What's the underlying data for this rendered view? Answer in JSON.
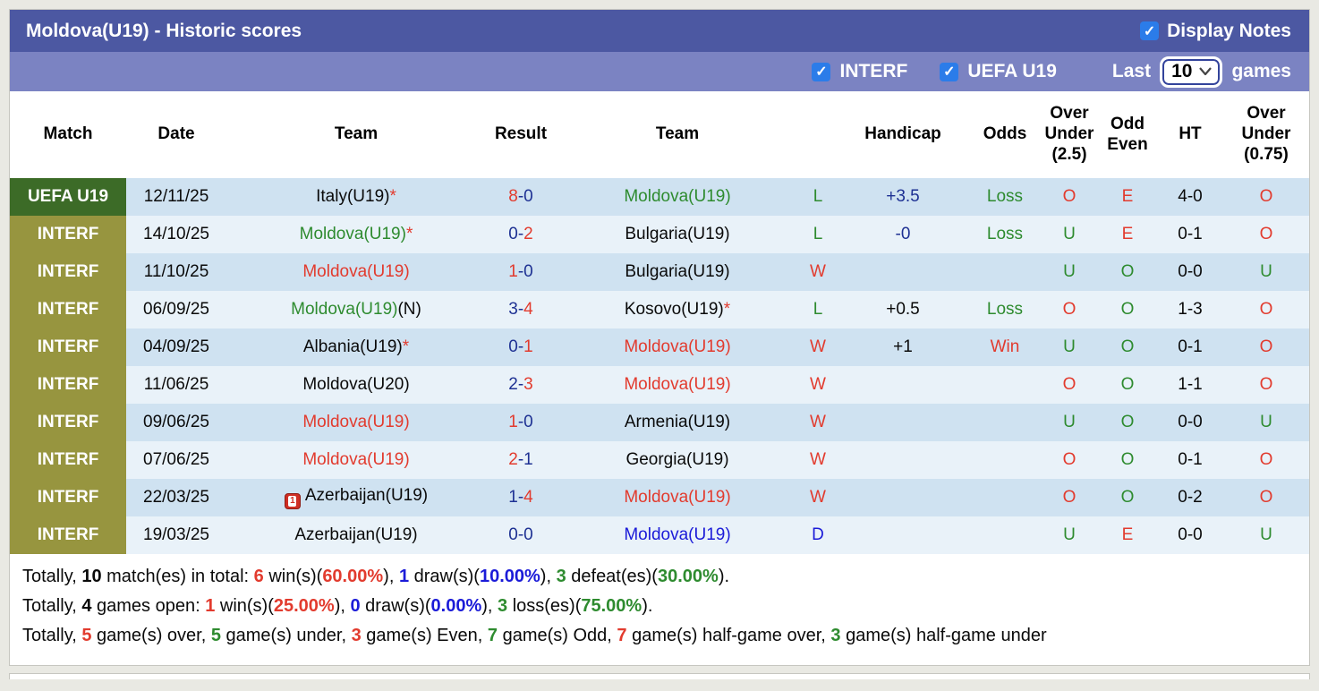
{
  "colors": {
    "titlebar_bg": "#4c58a2",
    "filterbar_bg": "#7b83c2",
    "checkbox_blue": "#2b7ce9",
    "uefa_badge": "#3c6b27",
    "interf_badge": "#97953f",
    "row_dark": "#cfe2f1",
    "row_light": "#e9f2f9",
    "red": "#e23b2e",
    "green": "#2e8b2f",
    "navy": "#1e3193",
    "blue": "#1b1bd8"
  },
  "titlebar": {
    "title": "Moldova(U19) - Historic scores",
    "display_notes": "Display Notes",
    "display_notes_checked": true
  },
  "filterbar": {
    "interf": "INTERF",
    "interf_checked": true,
    "uefa": "UEFA U19",
    "uefa_checked": true,
    "last": "Last",
    "select_value": "10",
    "games": "games"
  },
  "table": {
    "headers": [
      "Match",
      "Date",
      "Team",
      "Result",
      "Team",
      "",
      "Handicap",
      "Odds",
      "Over Under (2.5)",
      "Odd Even",
      "HT",
      "Over Under (0.75)"
    ],
    "rows": [
      {
        "badge": {
          "t": "UEFA U19",
          "type": "uefa"
        },
        "date": "12/11/25",
        "team1": [
          {
            "t": "Italy(U19)",
            "c": "black"
          },
          {
            "t": "*",
            "c": "red"
          }
        ],
        "result": [
          {
            "t": "8",
            "c": "red"
          },
          {
            "t": "-",
            "c": "navy"
          },
          {
            "t": "0",
            "c": "navy"
          }
        ],
        "team2": [
          {
            "t": "Moldova(U19)",
            "c": "green"
          }
        ],
        "letter": {
          "t": "L",
          "c": "green"
        },
        "handicap": {
          "t": "+3.5",
          "c": "navy"
        },
        "odds": {
          "t": "Loss",
          "c": "green"
        },
        "ou25": {
          "t": "O",
          "c": "red"
        },
        "odd_even": {
          "t": "E",
          "c": "red"
        },
        "ht": "4-0",
        "ou075": {
          "t": "O",
          "c": "red"
        }
      },
      {
        "badge": {
          "t": "INTERF",
          "type": "interf"
        },
        "date": "14/10/25",
        "team1": [
          {
            "t": "Moldova(U19)",
            "c": "green"
          },
          {
            "t": "*",
            "c": "red"
          }
        ],
        "result": [
          {
            "t": "0",
            "c": "navy"
          },
          {
            "t": "-",
            "c": "navy"
          },
          {
            "t": "2",
            "c": "red"
          }
        ],
        "team2": [
          {
            "t": "Bulgaria(U19)",
            "c": "black"
          }
        ],
        "letter": {
          "t": "L",
          "c": "green"
        },
        "handicap": {
          "t": "-0",
          "c": "navy"
        },
        "odds": {
          "t": "Loss",
          "c": "green"
        },
        "ou25": {
          "t": "U",
          "c": "green"
        },
        "odd_even": {
          "t": "E",
          "c": "red"
        },
        "ht": "0-1",
        "ou075": {
          "t": "O",
          "c": "red"
        }
      },
      {
        "badge": {
          "t": "INTERF",
          "type": "interf"
        },
        "date": "11/10/25",
        "team1": [
          {
            "t": "Moldova(U19)",
            "c": "red"
          }
        ],
        "result": [
          {
            "t": "1",
            "c": "red"
          },
          {
            "t": "-",
            "c": "navy"
          },
          {
            "t": "0",
            "c": "navy"
          }
        ],
        "team2": [
          {
            "t": "Bulgaria(U19)",
            "c": "black"
          }
        ],
        "letter": {
          "t": "W",
          "c": "red"
        },
        "handicap": null,
        "odds": null,
        "ou25": {
          "t": "U",
          "c": "green"
        },
        "odd_even": {
          "t": "O",
          "c": "green"
        },
        "ht": "0-0",
        "ou075": {
          "t": "U",
          "c": "green"
        }
      },
      {
        "badge": {
          "t": "INTERF",
          "type": "interf"
        },
        "date": "06/09/25",
        "team1": [
          {
            "t": "Moldova(U19)",
            "c": "green"
          },
          {
            "t": "(N)",
            "c": "black"
          }
        ],
        "result": [
          {
            "t": "3",
            "c": "navy"
          },
          {
            "t": "-",
            "c": "navy"
          },
          {
            "t": "4",
            "c": "red"
          }
        ],
        "team2": [
          {
            "t": "Kosovo(U19)",
            "c": "black"
          },
          {
            "t": "*",
            "c": "red"
          }
        ],
        "letter": {
          "t": "L",
          "c": "green"
        },
        "handicap": {
          "t": "+0.5",
          "c": "black"
        },
        "odds": {
          "t": "Loss",
          "c": "green"
        },
        "ou25": {
          "t": "O",
          "c": "red"
        },
        "odd_even": {
          "t": "O",
          "c": "green"
        },
        "ht": "1-3",
        "ou075": {
          "t": "O",
          "c": "red"
        }
      },
      {
        "badge": {
          "t": "INTERF",
          "type": "interf"
        },
        "date": "04/09/25",
        "team1": [
          {
            "t": "Albania(U19)",
            "c": "black"
          },
          {
            "t": "*",
            "c": "red"
          }
        ],
        "result": [
          {
            "t": "0",
            "c": "navy"
          },
          {
            "t": "-",
            "c": "navy"
          },
          {
            "t": "1",
            "c": "red"
          }
        ],
        "team2": [
          {
            "t": "Moldova(U19)",
            "c": "red"
          }
        ],
        "letter": {
          "t": "W",
          "c": "red"
        },
        "handicap": {
          "t": "+1",
          "c": "black"
        },
        "odds": {
          "t": "Win",
          "c": "red"
        },
        "ou25": {
          "t": "U",
          "c": "green"
        },
        "odd_even": {
          "t": "O",
          "c": "green"
        },
        "ht": "0-1",
        "ou075": {
          "t": "O",
          "c": "red"
        }
      },
      {
        "badge": {
          "t": "INTERF",
          "type": "interf"
        },
        "date": "11/06/25",
        "team1": [
          {
            "t": "Moldova(U20)",
            "c": "black"
          }
        ],
        "result": [
          {
            "t": "2",
            "c": "navy"
          },
          {
            "t": "-",
            "c": "navy"
          },
          {
            "t": "3",
            "c": "red"
          }
        ],
        "team2": [
          {
            "t": "Moldova(U19)",
            "c": "red"
          }
        ],
        "letter": {
          "t": "W",
          "c": "red"
        },
        "handicap": null,
        "odds": null,
        "ou25": {
          "t": "O",
          "c": "red"
        },
        "odd_even": {
          "t": "O",
          "c": "green"
        },
        "ht": "1-1",
        "ou075": {
          "t": "O",
          "c": "red"
        }
      },
      {
        "badge": {
          "t": "INTERF",
          "type": "interf"
        },
        "date": "09/06/25",
        "team1": [
          {
            "t": "Moldova(U19)",
            "c": "red"
          }
        ],
        "result": [
          {
            "t": "1",
            "c": "red"
          },
          {
            "t": "-",
            "c": "navy"
          },
          {
            "t": "0",
            "c": "navy"
          }
        ],
        "team2": [
          {
            "t": "Armenia(U19)",
            "c": "black"
          }
        ],
        "letter": {
          "t": "W",
          "c": "red"
        },
        "handicap": null,
        "odds": null,
        "ou25": {
          "t": "U",
          "c": "green"
        },
        "odd_even": {
          "t": "O",
          "c": "green"
        },
        "ht": "0-0",
        "ou075": {
          "t": "U",
          "c": "green"
        }
      },
      {
        "badge": {
          "t": "INTERF",
          "type": "interf"
        },
        "date": "07/06/25",
        "team1": [
          {
            "t": "Moldova(U19)",
            "c": "red"
          }
        ],
        "result": [
          {
            "t": "2",
            "c": "red"
          },
          {
            "t": "-",
            "c": "navy"
          },
          {
            "t": "1",
            "c": "navy"
          }
        ],
        "team2": [
          {
            "t": "Georgia(U19)",
            "c": "black"
          }
        ],
        "letter": {
          "t": "W",
          "c": "red"
        },
        "handicap": null,
        "odds": null,
        "ou25": {
          "t": "O",
          "c": "red"
        },
        "odd_even": {
          "t": "O",
          "c": "green"
        },
        "ht": "0-1",
        "ou075": {
          "t": "O",
          "c": "red"
        }
      },
      {
        "badge": {
          "t": "INTERF",
          "type": "interf"
        },
        "date": "22/03/25",
        "team1": [
          {
            "icon": "red-card"
          },
          {
            "t": "Azerbaijan(U19)",
            "c": "black"
          }
        ],
        "result": [
          {
            "t": "1",
            "c": "navy"
          },
          {
            "t": "-",
            "c": "navy"
          },
          {
            "t": "4",
            "c": "red"
          }
        ],
        "team2": [
          {
            "t": "Moldova(U19)",
            "c": "red"
          }
        ],
        "letter": {
          "t": "W",
          "c": "red"
        },
        "handicap": null,
        "odds": null,
        "ou25": {
          "t": "O",
          "c": "red"
        },
        "odd_even": {
          "t": "O",
          "c": "green"
        },
        "ht": "0-2",
        "ou075": {
          "t": "O",
          "c": "red"
        }
      },
      {
        "badge": {
          "t": "INTERF",
          "type": "interf"
        },
        "date": "19/03/25",
        "team1": [
          {
            "t": "Azerbaijan(U19)",
            "c": "black"
          }
        ],
        "result": [
          {
            "t": "0",
            "c": "navy"
          },
          {
            "t": "-",
            "c": "navy"
          },
          {
            "t": "0",
            "c": "navy"
          }
        ],
        "team2": [
          {
            "t": "Moldova(U19)",
            "c": "blue"
          }
        ],
        "letter": {
          "t": "D",
          "c": "blue"
        },
        "handicap": null,
        "odds": null,
        "ou25": {
          "t": "U",
          "c": "green"
        },
        "odd_even": {
          "t": "E",
          "c": "red"
        },
        "ht": "0-0",
        "ou075": {
          "t": "U",
          "c": "green"
        }
      }
    ]
  },
  "summary": [
    [
      {
        "t": "Totally, ",
        "c": "black"
      },
      {
        "t": "10",
        "c": "black",
        "b": true
      },
      {
        "t": " match(es) in total: ",
        "c": "black"
      },
      {
        "t": "6",
        "c": "red",
        "b": true
      },
      {
        "t": " win(s)(",
        "c": "black"
      },
      {
        "t": "60.00%",
        "c": "red",
        "b": true
      },
      {
        "t": "), ",
        "c": "black"
      },
      {
        "t": "1",
        "c": "blue",
        "b": true
      },
      {
        "t": " draw(s)(",
        "c": "black"
      },
      {
        "t": "10.00%",
        "c": "blue",
        "b": true
      },
      {
        "t": "), ",
        "c": "black"
      },
      {
        "t": "3",
        "c": "green",
        "b": true
      },
      {
        "t": " defeat(es)(",
        "c": "black"
      },
      {
        "t": "30.00%",
        "c": "green",
        "b": true
      },
      {
        "t": ").",
        "c": "black"
      }
    ],
    [
      {
        "t": "Totally, ",
        "c": "black"
      },
      {
        "t": "4",
        "c": "black",
        "b": true
      },
      {
        "t": " games open: ",
        "c": "black"
      },
      {
        "t": "1",
        "c": "red",
        "b": true
      },
      {
        "t": " win(s)(",
        "c": "black"
      },
      {
        "t": "25.00%",
        "c": "red",
        "b": true
      },
      {
        "t": "), ",
        "c": "black"
      },
      {
        "t": "0",
        "c": "blue",
        "b": true
      },
      {
        "t": " draw(s)(",
        "c": "black"
      },
      {
        "t": "0.00%",
        "c": "blue",
        "b": true
      },
      {
        "t": "), ",
        "c": "black"
      },
      {
        "t": "3",
        "c": "green",
        "b": true
      },
      {
        "t": " loss(es)(",
        "c": "black"
      },
      {
        "t": "75.00%",
        "c": "green",
        "b": true
      },
      {
        "t": ").",
        "c": "black"
      }
    ],
    [
      {
        "t": "Totally, ",
        "c": "black"
      },
      {
        "t": "5",
        "c": "red",
        "b": true
      },
      {
        "t": " game(s) over, ",
        "c": "black"
      },
      {
        "t": "5",
        "c": "green",
        "b": true
      },
      {
        "t": " game(s) under, ",
        "c": "black"
      },
      {
        "t": "3",
        "c": "red",
        "b": true
      },
      {
        "t": " game(s) Even, ",
        "c": "black"
      },
      {
        "t": "7",
        "c": "green",
        "b": true
      },
      {
        "t": " game(s) Odd, ",
        "c": "black"
      },
      {
        "t": "7",
        "c": "red",
        "b": true
      },
      {
        "t": " game(s) half-game over, ",
        "c": "black"
      },
      {
        "t": "3",
        "c": "green",
        "b": true
      },
      {
        "t": " game(s) half-game under",
        "c": "black"
      }
    ]
  ]
}
